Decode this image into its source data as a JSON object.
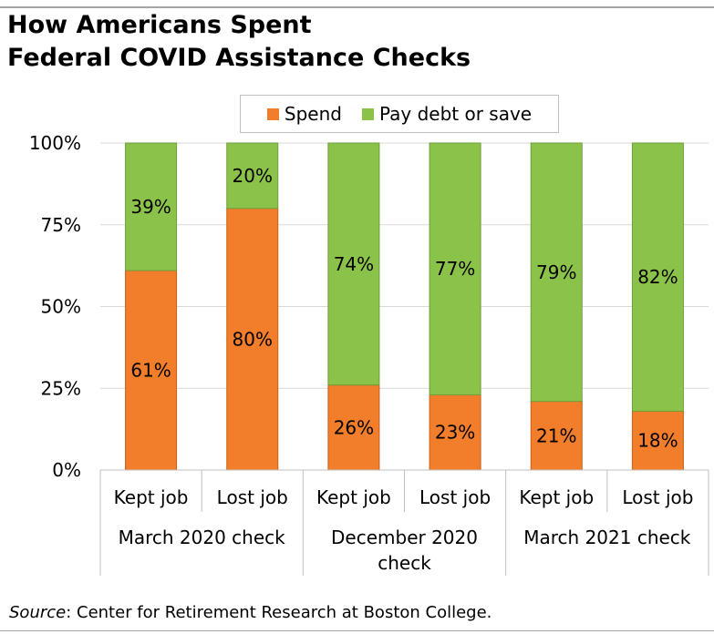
{
  "title_line1": "How Americans Spent",
  "title_line2": "Federal COVID Assistance Checks",
  "source": {
    "label": "Source",
    "text": ": Center for Retirement Research at Boston College."
  },
  "colors": {
    "spend": "#f27d2a",
    "save": "#8bc34a"
  },
  "chart_data": {
    "type": "bar",
    "stacked": true,
    "percent": true,
    "categories": [
      "Kept job",
      "Lost job",
      "Kept job",
      "Lost job",
      "Kept job",
      "Lost job"
    ],
    "groups": [
      {
        "label": [
          "March 2020 check"
        ],
        "categories": [
          0,
          1
        ]
      },
      {
        "label": [
          "December 2020",
          "check"
        ],
        "categories": [
          2,
          3
        ]
      },
      {
        "label": [
          "March 2021 check"
        ],
        "categories": [
          4,
          5
        ]
      }
    ],
    "series": [
      {
        "name": "Spend",
        "values": [
          61,
          80,
          26,
          23,
          21,
          18
        ],
        "labels": [
          "61%",
          "80%",
          "26%",
          "23%",
          "21%",
          "18%"
        ]
      },
      {
        "name": "Pay debt or save",
        "values": [
          39,
          20,
          74,
          77,
          79,
          82
        ],
        "labels": [
          "39%",
          "20%",
          "74%",
          "77%",
          "79%",
          "82%"
        ]
      }
    ],
    "yticks": [
      "0%",
      "25%",
      "50%",
      "75%",
      "100%"
    ],
    "ylim": [
      0,
      100
    ],
    "grid": true,
    "legend": "top"
  }
}
